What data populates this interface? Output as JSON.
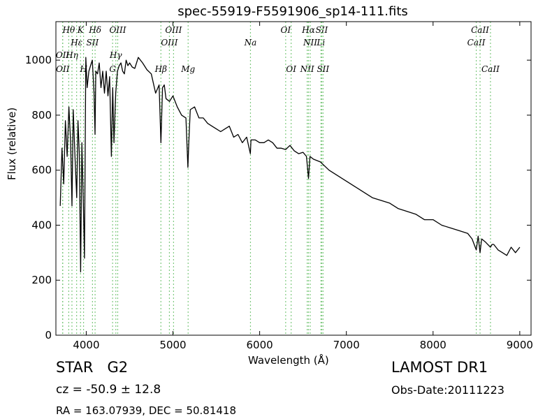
{
  "colors": {
    "spectrum": "#000000",
    "line_marker": "#7fc97f"
  },
  "labels": {
    "object_class": "STAR",
    "subclass": "G2",
    "cz": "cz = -50.9 ± 12.8",
    "radec": "RA = 163.07939, DEC = 50.81418",
    "survey": "LAMOST DR1",
    "obs_date": "Obs-Date:20111223"
  },
  "chart_data": {
    "type": "line",
    "title": "spec-55919-F5591906_sp14-111.fits",
    "xlabel": "Wavelength (Å)",
    "ylabel": "Flux (relative)",
    "xlim": [
      3650,
      9130
    ],
    "ylim": [
      0,
      1140
    ],
    "xticks": [
      4000,
      5000,
      6000,
      7000,
      8000,
      9000
    ],
    "yticks": [
      0,
      200,
      400,
      600,
      800,
      1000
    ],
    "grid": false,
    "series": [
      {
        "x": [
          3700,
          3720,
          3740,
          3760,
          3780,
          3800,
          3820,
          3835,
          3850,
          3870,
          3890,
          3905,
          3920,
          3935,
          3950,
          3965,
          3980,
          3995,
          4010,
          4030,
          4050,
          4070,
          4090,
          4101,
          4110,
          4130,
          4150,
          4170,
          4190,
          4210,
          4230,
          4250,
          4270,
          4290,
          4305,
          4320,
          4340,
          4360,
          4380,
          4400,
          4420,
          4440,
          4460,
          4480,
          4500,
          4530,
          4560,
          4600,
          4650,
          4700,
          4750,
          4800,
          4840,
          4861,
          4880,
          4900,
          4920,
          4960,
          5000,
          5050,
          5100,
          5150,
          5172,
          5183,
          5200,
          5250,
          5300,
          5350,
          5400,
          5450,
          5500,
          5550,
          5600,
          5650,
          5700,
          5750,
          5800,
          5850,
          5893,
          5900,
          5950,
          6000,
          6050,
          6100,
          6150,
          6200,
          6250,
          6300,
          6350,
          6400,
          6450,
          6500,
          6540,
          6563,
          6580,
          6620,
          6700,
          6800,
          6900,
          7000,
          7100,
          7200,
          7300,
          7400,
          7500,
          7600,
          7700,
          7800,
          7900,
          8000,
          8100,
          8200,
          8300,
          8400,
          8450,
          8498,
          8520,
          8542,
          8560,
          8600,
          8662,
          8680,
          8700,
          8750,
          8800,
          8850,
          8900,
          8950,
          9000
        ],
        "y": [
          470,
          680,
          550,
          780,
          650,
          830,
          700,
          470,
          820,
          650,
          500,
          780,
          660,
          230,
          700,
          500,
          280,
          1010,
          900,
          960,
          980,
          1000,
          880,
          730,
          960,
          950,
          990,
          900,
          960,
          880,
          960,
          870,
          940,
          650,
          900,
          700,
          880,
          960,
          980,
          990,
          960,
          950,
          1000,
          980,
          990,
          975,
          970,
          1010,
          990,
          965,
          950,
          880,
          910,
          700,
          900,
          910,
          860,
          850,
          870,
          830,
          800,
          790,
          610,
          700,
          820,
          830,
          790,
          790,
          770,
          760,
          750,
          740,
          750,
          760,
          720,
          730,
          700,
          720,
          660,
          710,
          710,
          700,
          700,
          710,
          700,
          680,
          680,
          675,
          690,
          670,
          660,
          665,
          650,
          570,
          650,
          640,
          630,
          600,
          580,
          560,
          540,
          520,
          500,
          490,
          480,
          460,
          450,
          440,
          420,
          420,
          400,
          390,
          380,
          370,
          350,
          310,
          360,
          300,
          350,
          340,
          320,
          330,
          330,
          310,
          300,
          290,
          320,
          300,
          320
        ]
      }
    ],
    "spectral_lines": [
      {
        "label": "OII",
        "x": 3727,
        "tier": 2
      },
      {
        "label": "OII",
        "x": 3729,
        "tier": 3
      },
      {
        "label": "Hθ",
        "x": 3798,
        "tier": 0
      },
      {
        "label": "Hη",
        "x": 3835,
        "tier": 2
      },
      {
        "label": "Hε",
        "x": 3889,
        "tier": 1
      },
      {
        "label": "K",
        "x": 3934,
        "tier": 0
      },
      {
        "label": "H",
        "x": 3969,
        "tier": 3
      },
      {
        "label": "SII",
        "x": 4072,
        "tier": 1
      },
      {
        "label": "Hδ",
        "x": 4102,
        "tier": 0
      },
      {
        "label": "G",
        "x": 4304,
        "tier": 3
      },
      {
        "label": "Hγ",
        "x": 4341,
        "tier": 2
      },
      {
        "label": "OIII",
        "x": 4363,
        "tier": 0
      },
      {
        "label": "Hβ",
        "x": 4861,
        "tier": 3
      },
      {
        "label": "OIII",
        "x": 4959,
        "tier": 1
      },
      {
        "label": "OIII",
        "x": 5007,
        "tier": 0
      },
      {
        "label": "Mg",
        "x": 5175,
        "tier": 3
      },
      {
        "label": "Na",
        "x": 5894,
        "tier": 1
      },
      {
        "label": "OI",
        "x": 6300,
        "tier": 0
      },
      {
        "label": "OI",
        "x": 6363,
        "tier": 3
      },
      {
        "label": "NII",
        "x": 6548,
        "tier": 3
      },
      {
        "label": "Hα",
        "x": 6563,
        "tier": 0
      },
      {
        "label": "NII",
        "x": 6583,
        "tier": 1
      },
      {
        "label": "Li",
        "x": 6707,
        "tier": 1
      },
      {
        "label": "SII",
        "x": 6716,
        "tier": 0
      },
      {
        "label": "SII",
        "x": 6731,
        "tier": 3
      },
      {
        "label": "CaII",
        "x": 8498,
        "tier": 1
      },
      {
        "label": "CaII",
        "x": 8542,
        "tier": 0
      },
      {
        "label": "CaII",
        "x": 8662,
        "tier": 3
      }
    ]
  }
}
